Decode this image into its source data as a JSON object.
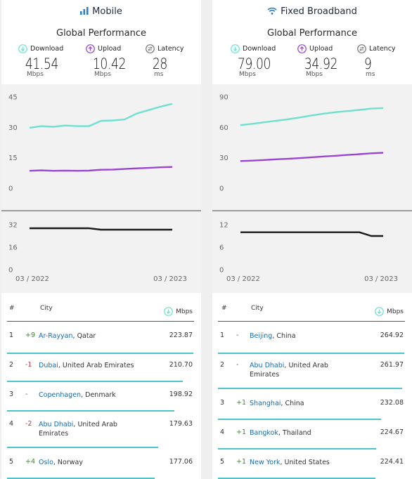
{
  "panels": [
    {
      "title": "Mobile",
      "icon": "signal-bars-icon",
      "subtitle": "Global Performance",
      "metrics": {
        "download": {
          "label": "Download",
          "value": "41.54",
          "unit": "Mbps"
        },
        "upload": {
          "label": "Upload",
          "value": "10.42",
          "unit": "Mbps"
        },
        "latency": {
          "label": "Latency",
          "value": "28",
          "unit": "ms"
        }
      },
      "table": {
        "col_rank": "#",
        "col_city": "City",
        "col_speed": "Mbps",
        "rows": [
          {
            "rank": "1",
            "change": "+9",
            "city": "Ar-Rayyan",
            "country": ", Qatar",
            "mbps": "223.87"
          },
          {
            "rank": "2",
            "change": "-1",
            "city": "Dubai",
            "country": ", United Arab Emirates",
            "mbps": "210.70"
          },
          {
            "rank": "3",
            "change": "-",
            "city": "Copenhagen",
            "country": ", Denmark",
            "mbps": "198.92"
          },
          {
            "rank": "4",
            "change": "-2",
            "city": "Abu Dhabi",
            "country": ", United Arab Emirates",
            "mbps": "179.63"
          },
          {
            "rank": "5",
            "change": "+4",
            "city": "Oslo",
            "country": ", Norway",
            "mbps": "177.06"
          }
        ]
      }
    },
    {
      "title": "Fixed Broadband",
      "icon": "wifi-icon",
      "subtitle": "Global Performance",
      "metrics": {
        "download": {
          "label": "Download",
          "value": "79.00",
          "unit": "Mbps"
        },
        "upload": {
          "label": "Upload",
          "value": "34.92",
          "unit": "Mbps"
        },
        "latency": {
          "label": "Latency",
          "value": "9",
          "unit": "ms"
        }
      },
      "table": {
        "col_rank": "#",
        "col_city": "City",
        "col_speed": "Mbps",
        "rows": [
          {
            "rank": "1",
            "change": "-",
            "city": "Beijing",
            "country": ", China",
            "mbps": "264.92"
          },
          {
            "rank": "2",
            "change": "-",
            "city": "Abu Dhabi",
            "country": ", United Arab Emirates",
            "mbps": "261.97"
          },
          {
            "rank": "3",
            "change": "+1",
            "city": "Shanghai",
            "country": ", China",
            "mbps": "232.08"
          },
          {
            "rank": "4",
            "change": "+1",
            "city": "Bangkok",
            "country": ", Thailand",
            "mbps": "224.67"
          },
          {
            "rank": "5",
            "change": "+1",
            "city": "New York",
            "country": ", United States",
            "mbps": "224.41"
          }
        ]
      }
    }
  ],
  "colors": {
    "download": "#6fe0d0",
    "upload": "#9a45cf",
    "latency": "#1b1b1b",
    "bar": "#4ec3c9",
    "text_link": "#1b6aa8",
    "header_icon": "#2f7fc4"
  },
  "chart_data": [
    {
      "type": "line",
      "panel": "Mobile",
      "x": [
        "03/2022",
        "04/2022",
        "05/2022",
        "06/2022",
        "07/2022",
        "08/2022",
        "09/2022",
        "10/2022",
        "11/2022",
        "12/2022",
        "01/2023",
        "02/2023",
        "03/2023"
      ],
      "x_tick_labels": [
        "03 / 2022",
        "03 / 2023"
      ],
      "speed": {
        "ylim": [
          0,
          45
        ],
        "yticks": [
          0,
          15,
          30,
          45
        ],
        "series": [
          {
            "key": "download",
            "values": [
              29.8,
              30.6,
              30.3,
              30.9,
              30.6,
              30.6,
              33.2,
              33.4,
              33.9,
              36.8,
              38.5,
              40.2,
              41.6
            ]
          },
          {
            "key": "upload",
            "values": [
              8.6,
              8.8,
              8.6,
              8.7,
              8.6,
              8.7,
              9.1,
              9.2,
              9.5,
              9.8,
              10.0,
              10.3,
              10.5
            ]
          }
        ]
      },
      "latency": {
        "ylim": [
          0,
          32
        ],
        "yticks": [
          0,
          16,
          32
        ],
        "series": [
          {
            "key": "latency",
            "values": [
              29.5,
              29.5,
              29.5,
              29.5,
              29.5,
              29.5,
              28.5,
              28.5,
              28.5,
              28.5,
              28.5,
              28.5,
              28.5
            ]
          }
        ]
      }
    },
    {
      "type": "line",
      "panel": "Fixed Broadband",
      "x": [
        "03/2022",
        "04/2022",
        "05/2022",
        "06/2022",
        "07/2022",
        "08/2022",
        "09/2022",
        "10/2022",
        "11/2022",
        "12/2022",
        "01/2023",
        "02/2023",
        "03/2023"
      ],
      "x_tick_labels": [
        "03 / 2022",
        "03 / 2023"
      ],
      "speed": {
        "ylim": [
          0,
          90
        ],
        "yticks": [
          0,
          30,
          60,
          90
        ],
        "series": [
          {
            "key": "download",
            "values": [
              62.2,
              63.5,
              65.0,
              66.5,
              68.0,
              69.8,
              71.8,
              73.5,
              75.0,
              76.0,
              77.2,
              78.5,
              79.0
            ]
          },
          {
            "key": "upload",
            "values": [
              26.8,
              27.2,
              27.8,
              28.5,
              29.0,
              29.7,
              30.5,
              31.3,
              32.0,
              32.8,
              33.6,
              34.4,
              35.0
            ]
          }
        ]
      },
      "latency": {
        "ylim": [
          0,
          12
        ],
        "yticks": [
          0,
          6,
          12
        ],
        "series": [
          {
            "key": "latency",
            "values": [
              10,
              10,
              10,
              10,
              10,
              10,
              10,
              10,
              10,
              10,
              10,
              9,
              9
            ]
          }
        ]
      }
    }
  ]
}
